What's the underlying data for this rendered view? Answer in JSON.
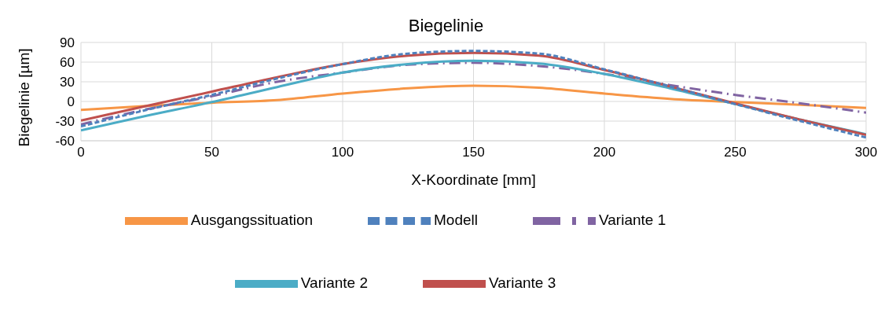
{
  "chart_data": {
    "type": "line",
    "title": "Biegelinie",
    "xlabel": "X-Koordinate [mm]",
    "ylabel": "Biegelinie [µm]",
    "x": [
      0,
      25,
      50,
      75,
      100,
      125,
      150,
      175,
      200,
      225,
      250,
      275,
      300
    ],
    "xlim": [
      0,
      300
    ],
    "xticks": [
      0,
      50,
      100,
      150,
      200,
      250,
      300
    ],
    "ylim": [
      -60,
      90
    ],
    "yticks": [
      -60,
      -30,
      0,
      30,
      60,
      90
    ],
    "grid": true,
    "legend": "bottom",
    "marker": "none",
    "series": [
      {
        "name": "Ausgangssituation",
        "color": "#f79646",
        "line_style": "solid",
        "values": [
          -13,
          -7,
          -2,
          2,
          12,
          20,
          24,
          21,
          12,
          4,
          -1,
          -5,
          -10
        ]
      },
      {
        "name": "Variante 1",
        "color": "#8064a2",
        "line_style": "dashdot",
        "values": [
          -35,
          -12,
          8,
          30,
          44,
          56,
          59,
          54,
          42,
          25,
          10,
          -3,
          -17
        ]
      },
      {
        "name": "Variante 2",
        "color": "#4bacc6",
        "line_style": "solid",
        "values": [
          -44,
          -22,
          -1,
          22,
          44,
          57,
          62,
          58,
          42,
          20,
          -4,
          -28,
          -50
        ]
      },
      {
        "name": "Variante 3",
        "color": "#c0504d",
        "line_style": "solid",
        "values": [
          -29,
          -7,
          15,
          37,
          57,
          70,
          74,
          70,
          48,
          23,
          -3,
          -28,
          -51
        ]
      },
      {
        "name": "Modell",
        "color": "#4f81bd",
        "line_style": "dashed",
        "values": [
          -38,
          -13,
          10,
          35,
          57,
          73,
          77,
          73,
          49,
          23,
          -4,
          -30,
          -55
        ]
      }
    ]
  }
}
